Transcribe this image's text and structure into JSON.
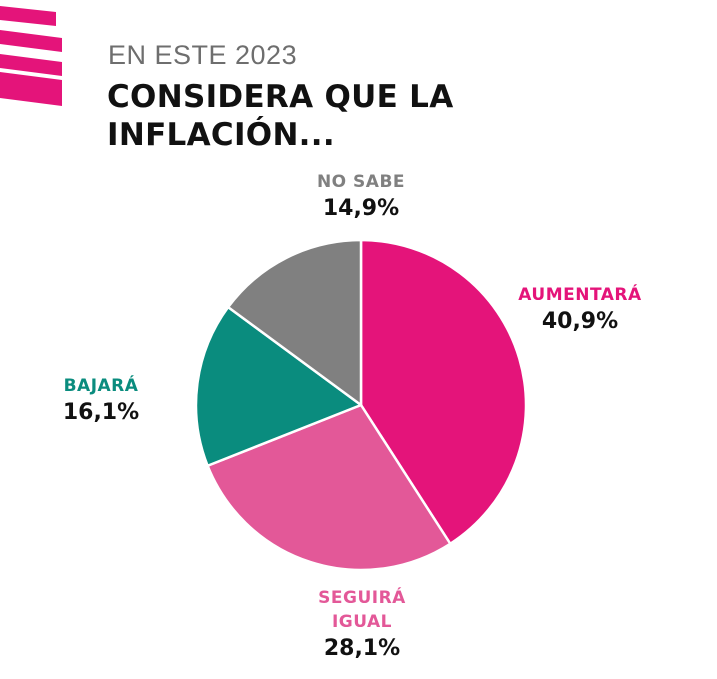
{
  "header": {
    "subtitle": "EN ESTE 2023",
    "title": "CONSIDERA QUE LA INFLACIÓN..."
  },
  "colors": {
    "brand_pink": "#e4147a",
    "light_pink": "#e35898",
    "teal": "#0a8c7e",
    "gray": "#808080"
  },
  "chart_data": {
    "type": "pie",
    "title": "CONSIDERA QUE LA INFLACIÓN...",
    "subtitle": "EN ESTE 2023",
    "start": "12 o'clock",
    "direction": "clockwise",
    "slices": [
      {
        "label": "AUMENTARÁ",
        "value": 40.9,
        "value_label": "40,9%",
        "color": "#e4147a"
      },
      {
        "label": "SEGUIRÁ IGUAL",
        "value": 28.1,
        "value_label": "28,1%",
        "color": "#e35898"
      },
      {
        "label": "BAJARÁ",
        "value": 16.1,
        "value_label": "16,1%",
        "color": "#0a8c7e"
      },
      {
        "label": "NO SABE",
        "value": 14.9,
        "value_label": "14,9%",
        "color": "#808080"
      }
    ]
  }
}
